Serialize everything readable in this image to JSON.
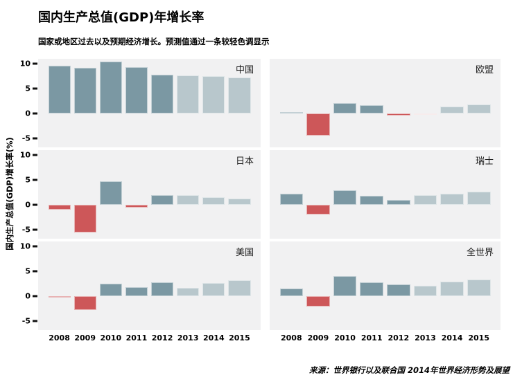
{
  "header": {
    "title": "国内生产总值(GDP)年增长率",
    "subtitle": "国家或地区过去以及预期经济增长。预测值通过一条较轻色调显示"
  },
  "y_axis_label": "国内生产总值(GDP)增长率(%)",
  "source": "来源：世界银行以及联合国 2014年世界经济形势及展望",
  "colors": {
    "positive_past": "#7b98a3",
    "positive_forecast": "#b8c7cc",
    "negative_past": "#cd5759",
    "negative_forecast": "#eed4d5",
    "panel_background": "#f1f1f2",
    "text": "#000000"
  },
  "chart_data": {
    "type": "bar",
    "title": "国内生产总值(GDP)年增长率",
    "subtitle": "国家或地区过去以及预期经济增长。预测值通过一条较轻色调显示",
    "ylabel": "国内生产总值(GDP)增长率(%)",
    "xlabel": "",
    "categories": [
      "2008",
      "2009",
      "2010",
      "2011",
      "2012",
      "2013",
      "2014",
      "2015"
    ],
    "y_ticks": [
      10,
      5,
      0,
      -5
    ],
    "ylim": [
      -6.8,
      11.0
    ],
    "grid": false,
    "legend": "none",
    "forecast_from_category": "2013",
    "note": "bars for 2013-2015 are forecasts shown in a lighter tint; negative values shown in red",
    "panels": [
      {
        "key": "china",
        "label": "中国",
        "values": [
          9.6,
          9.2,
          10.4,
          9.3,
          7.8,
          7.7,
          7.5,
          7.3
        ]
      },
      {
        "key": "eu",
        "label": "欧盟",
        "values": [
          0.3,
          -4.4,
          2.1,
          1.7,
          -0.4,
          -0.1,
          1.4,
          1.8
        ]
      },
      {
        "key": "japan",
        "label": "日本",
        "values": [
          -1.0,
          -5.5,
          4.7,
          -0.5,
          2.0,
          2.0,
          1.5,
          1.2
        ]
      },
      {
        "key": "switzerland",
        "label": "瑞士",
        "values": [
          2.2,
          -1.9,
          3.0,
          1.8,
          1.0,
          2.0,
          2.2,
          2.7
        ]
      },
      {
        "key": "usa",
        "label": "美国",
        "values": [
          -0.3,
          -2.8,
          2.5,
          1.8,
          2.8,
          1.7,
          2.6,
          3.2
        ]
      },
      {
        "key": "world",
        "label": "全世界",
        "values": [
          1.5,
          -2.1,
          4.0,
          2.8,
          2.4,
          2.1,
          3.0,
          3.3
        ]
      }
    ]
  }
}
